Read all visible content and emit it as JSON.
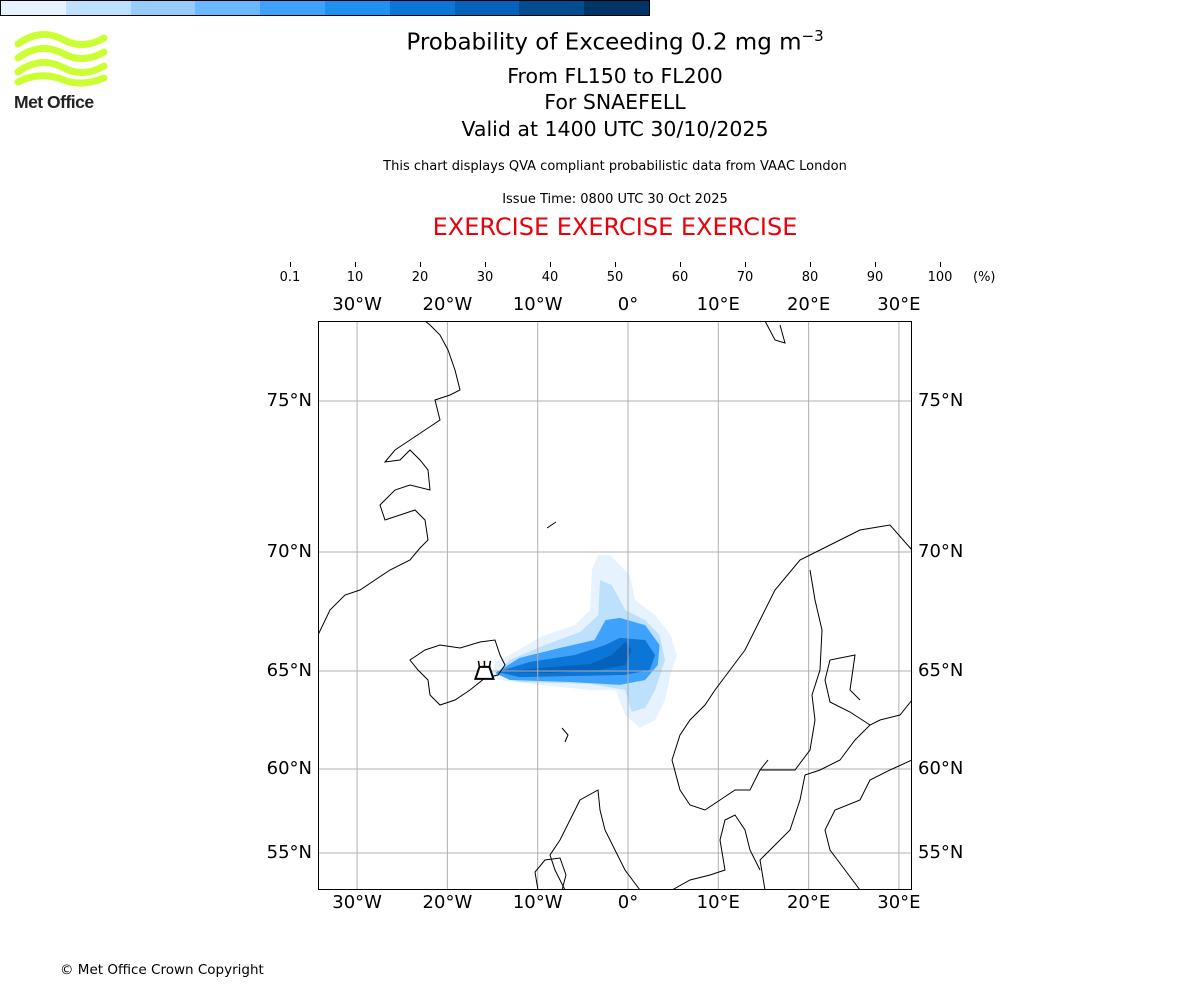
{
  "logo": {
    "text": "Met Office",
    "color": "#ccff33"
  },
  "header": {
    "title": "Probability of Exceeding 0.2 mg m",
    "title_exponent": "−3",
    "levels": "From FL150 to FL200",
    "volcano": "For SNAEFELL",
    "valid": "Valid at 1400 UTC 30/10/2025",
    "description": "This chart displays QVA compliant probabilistic data from VAAC London",
    "issue_time": "Issue Time: 0800 UTC 30 Oct 2025",
    "exercise": "EXERCISE EXERCISE EXERCISE"
  },
  "colorbar": {
    "ticks": [
      "0.1",
      "10",
      "20",
      "30",
      "40",
      "50",
      "60",
      "70",
      "80",
      "90",
      "100"
    ],
    "unit": "(%)",
    "colors": [
      "#e6f3ff",
      "#bde0fc",
      "#96cbfc",
      "#6bb8fc",
      "#3ea1fc",
      "#1e90f0",
      "#0c75d8",
      "#0462bb",
      "#034c8f",
      "#003466"
    ]
  },
  "map": {
    "lon_labels": [
      {
        "lon": -30,
        "label": "30°W"
      },
      {
        "lon": -20,
        "label": "20°W"
      },
      {
        "lon": -10,
        "label": "10°W"
      },
      {
        "lon": 0,
        "label": "0°"
      },
      {
        "lon": 10,
        "label": "10°E"
      },
      {
        "lon": 20,
        "label": "20°E"
      },
      {
        "lon": 30,
        "label": "30°E"
      }
    ],
    "lat_labels": [
      {
        "lat": 75,
        "label": "75°N"
      },
      {
        "lat": 70,
        "label": "70°N"
      },
      {
        "lat": 65,
        "label": "65°N"
      },
      {
        "lat": 60,
        "label": "60°N"
      },
      {
        "lat": 55,
        "label": "55°N"
      }
    ],
    "volcano": {
      "name": "SNAEFELL",
      "lon": -15.9,
      "lat": 64.8
    },
    "plume_levels": [
      {
        "band": "0.1-10",
        "color": "#e6f3ff",
        "points": [
          [
            -15.1,
            64.75
          ],
          [
            -14.7,
            65.38
          ],
          [
            -13.1,
            65.67
          ],
          [
            -9.7,
            66.43
          ],
          [
            -5.9,
            66.93
          ],
          [
            -4.2,
            67.56
          ],
          [
            -4.0,
            69.24
          ],
          [
            -3.3,
            69.87
          ],
          [
            -2.0,
            69.87
          ],
          [
            0.2,
            69.03
          ],
          [
            0.8,
            67.98
          ],
          [
            3.0,
            67.35
          ],
          [
            4.7,
            66.51
          ],
          [
            5.4,
            65.67
          ],
          [
            4.7,
            64.8
          ],
          [
            4.1,
            63.52
          ],
          [
            3.0,
            62.5
          ],
          [
            1.3,
            62.1
          ],
          [
            -0.3,
            62.76
          ],
          [
            -1.4,
            64.03
          ],
          [
            -4.2,
            64.03
          ],
          [
            -9.7,
            64.29
          ],
          [
            -14.2,
            64.54
          ]
        ]
      },
      {
        "band": "10-30",
        "color": "#bde0fc",
        "points": [
          [
            -14.7,
            64.85
          ],
          [
            -13.1,
            65.46
          ],
          [
            -9.2,
            66.09
          ],
          [
            -5.3,
            66.64
          ],
          [
            -3.3,
            67.35
          ],
          [
            -3.1,
            68.82
          ],
          [
            -1.8,
            68.61
          ],
          [
            -0.3,
            67.56
          ],
          [
            1.9,
            67.14
          ],
          [
            3.5,
            66.51
          ],
          [
            4.1,
            65.46
          ],
          [
            3.0,
            64.03
          ],
          [
            1.9,
            63.11
          ],
          [
            0.4,
            62.91
          ],
          [
            -0.3,
            64.03
          ],
          [
            -4.2,
            64.34
          ],
          [
            -12.0,
            64.44
          ]
        ]
      },
      {
        "band": "30-60",
        "color": "#3ea1fc",
        "points": [
          [
            -14.7,
            64.9
          ],
          [
            -12.0,
            65.55
          ],
          [
            -7.5,
            65.97
          ],
          [
            -3.7,
            66.3
          ],
          [
            -2.5,
            67.14
          ],
          [
            -0.9,
            67.23
          ],
          [
            1.9,
            66.93
          ],
          [
            3.5,
            66.09
          ],
          [
            3.3,
            65.25
          ],
          [
            1.9,
            64.54
          ],
          [
            -0.9,
            64.29
          ],
          [
            -6.4,
            64.44
          ],
          [
            -13.1,
            64.54
          ]
        ]
      },
      {
        "band": "60-80",
        "color": "#0c75d8",
        "points": [
          [
            -14.5,
            64.95
          ],
          [
            -10.9,
            65.38
          ],
          [
            -5.9,
            65.67
          ],
          [
            -2.5,
            66.09
          ],
          [
            -0.9,
            66.39
          ],
          [
            1.9,
            66.3
          ],
          [
            3.0,
            65.67
          ],
          [
            2.4,
            65.04
          ],
          [
            -0.3,
            64.8
          ],
          [
            -5.3,
            64.75
          ],
          [
            -12.0,
            64.69
          ]
        ]
      },
      {
        "band": "80-90",
        "color": "#0462bb",
        "points": [
          [
            -14.2,
            64.95
          ],
          [
            -9.7,
            65.13
          ],
          [
            -4.2,
            65.29
          ],
          [
            -1.8,
            65.67
          ],
          [
            -0.3,
            66.22
          ],
          [
            0.4,
            65.88
          ],
          [
            -0.3,
            65.25
          ],
          [
            -3.1,
            65.04
          ],
          [
            -8.6,
            64.9
          ]
        ]
      }
    ]
  },
  "footer": {
    "copyright": "© Met Office Crown Copyright"
  }
}
